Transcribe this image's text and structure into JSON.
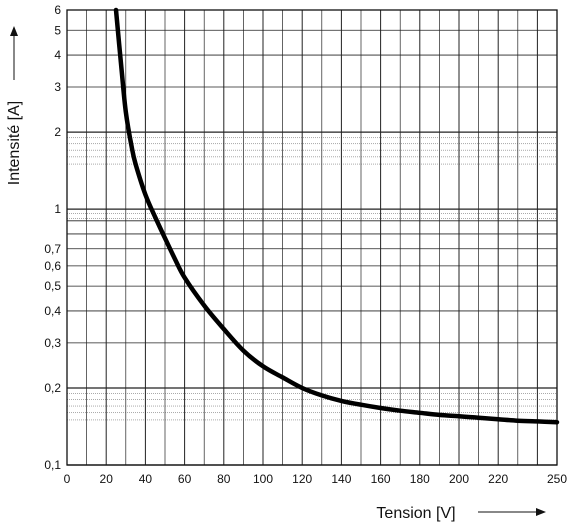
{
  "chart_data": {
    "type": "line",
    "title": "",
    "xlabel": "Tension [V]",
    "ylabel": "Intensité [A]",
    "xlim": [
      0,
      250
    ],
    "ylim": [
      0.1,
      6
    ],
    "yscale": "log",
    "grid": true,
    "x_ticks": [
      0,
      20,
      40,
      60,
      80,
      100,
      120,
      140,
      160,
      180,
      200,
      220,
      250
    ],
    "x_tick_labels": [
      "0",
      "20",
      "40",
      "60",
      "80",
      "100",
      "120",
      "140",
      "160",
      "180",
      "200",
      "220",
      "250"
    ],
    "y_ticks": [
      0.1,
      0.2,
      0.3,
      0.4,
      0.5,
      0.6,
      0.7,
      1,
      2,
      3,
      4,
      5,
      6
    ],
    "y_tick_labels": [
      "0,1",
      "0,2",
      "0,3",
      "0,4",
      "0,5",
      "0,6",
      "0,7",
      "1",
      "2",
      "3",
      "4",
      "5",
      "6"
    ],
    "series": [
      {
        "color": "#000000",
        "x": [
          25,
          28,
          30,
          33,
          35,
          40,
          45,
          50,
          55,
          60,
          70,
          80,
          90,
          100,
          110,
          120,
          130,
          140,
          150,
          160,
          170,
          180,
          190,
          200,
          210,
          220,
          230,
          240,
          250
        ],
        "y": [
          6.0,
          3.4,
          2.4,
          1.75,
          1.5,
          1.14,
          0.93,
          0.77,
          0.64,
          0.54,
          0.42,
          0.34,
          0.28,
          0.243,
          0.22,
          0.2,
          0.187,
          0.178,
          0.172,
          0.167,
          0.163,
          0.16,
          0.157,
          0.155,
          0.153,
          0.151,
          0.149,
          0.148,
          0.147
        ]
      }
    ]
  }
}
